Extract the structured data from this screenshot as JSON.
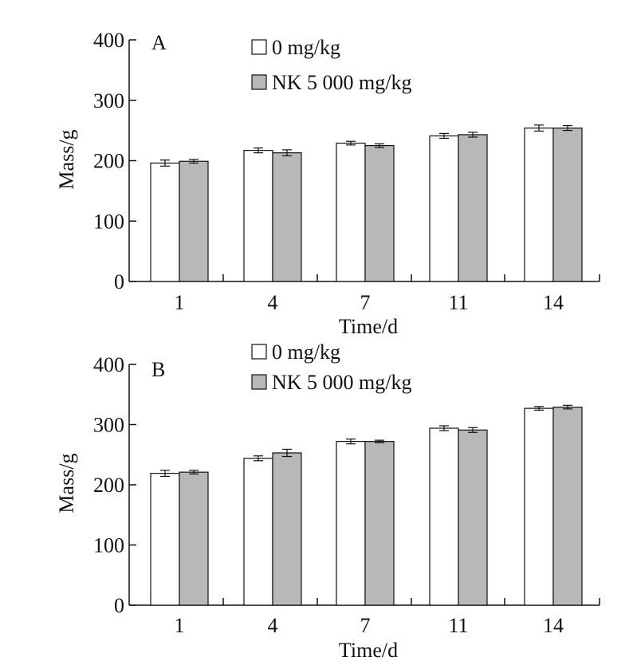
{
  "chart_data": [
    {
      "type": "bar",
      "panel_label": "A",
      "categories": [
        "1",
        "4",
        "7",
        "11",
        "14"
      ],
      "xlabel": "Time/d",
      "ylabel": "Mass/g",
      "ylim": [
        0,
        400
      ],
      "yticks": [
        "0",
        "100",
        "200",
        "300",
        "400"
      ],
      "legend_placement": "top-center",
      "series": [
        {
          "name": "0 mg/kg",
          "color": "#ffffff",
          "values": [
            196,
            217,
            229,
            241,
            254
          ],
          "errors": [
            5,
            4,
            3,
            4,
            5
          ]
        },
        {
          "name": "NK 5 000 mg/kg",
          "color": "#b8b8b8",
          "values": [
            199,
            213,
            225,
            243,
            254
          ],
          "errors": [
            3,
            5,
            3,
            4,
            4
          ]
        }
      ]
    },
    {
      "type": "bar",
      "panel_label": "B",
      "categories": [
        "1",
        "4",
        "7",
        "11",
        "14"
      ],
      "xlabel": "Time/d",
      "ylabel": "Mass/g",
      "ylim": [
        0,
        400
      ],
      "yticks": [
        "0",
        "100",
        "200",
        "300",
        "400"
      ],
      "legend_placement": "top-center",
      "series": [
        {
          "name": "0 mg/kg",
          "color": "#ffffff",
          "values": [
            219,
            244,
            272,
            294,
            327
          ],
          "errors": [
            5,
            4,
            4,
            4,
            3
          ]
        },
        {
          "name": "NK 5 000 mg/kg",
          "color": "#b8b8b8",
          "values": [
            221,
            253,
            272,
            291,
            329
          ],
          "errors": [
            3,
            6,
            2,
            4,
            3
          ]
        }
      ]
    }
  ]
}
